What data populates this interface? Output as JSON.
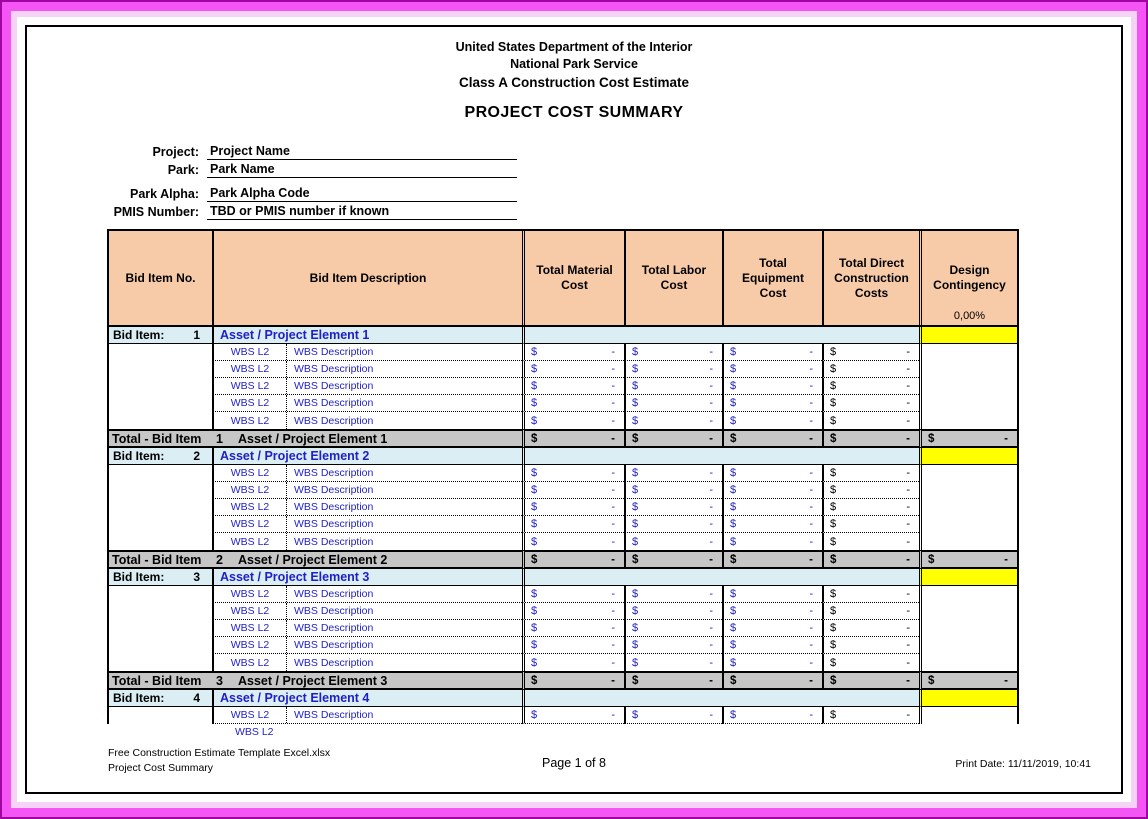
{
  "header": {
    "line1": "United States Department of the Interior",
    "line2": "National Park Service",
    "line3": "Class A Construction Cost Estimate",
    "title": "PROJECT COST SUMMARY"
  },
  "fields": [
    {
      "label": "Project:",
      "value": "Project Name"
    },
    {
      "label": "Park:",
      "value": "Park Name"
    },
    {
      "label": "Park Alpha:",
      "value": "Park Alpha Code"
    },
    {
      "label": "PMIS Number:",
      "value": "TBD or PMIS number if known"
    }
  ],
  "table": {
    "headers": {
      "bid_item_no": "Bid Item No.",
      "bid_item_description": "Bid Item Description",
      "total_material_cost": "Total Material Cost",
      "total_labor_cost": "Total Labor Cost",
      "total_equipment_cost": "Total Equipment Cost",
      "total_direct_construction_costs": "Total Direct Construction Costs",
      "design_contingency": "Design Contingency",
      "design_contingency_pct": "0,00%"
    },
    "row_labels": {
      "bid_item_prefix": "Bid Item:",
      "total_prefix": "Total - Bid Item",
      "wbs_code": "WBS L2",
      "wbs_description": "WBS Description",
      "currency": "$",
      "empty_amount": "-"
    },
    "sections": [
      {
        "number": "1",
        "description": "Asset / Project Element 1",
        "wbs_rows": 5,
        "has_total": true
      },
      {
        "number": "2",
        "description": "Asset / Project Element 2",
        "wbs_rows": 5,
        "has_total": true
      },
      {
        "number": "3",
        "description": "Asset / Project Element 3",
        "wbs_rows": 5,
        "has_total": true
      },
      {
        "number": "4",
        "description": "Asset / Project Element 4",
        "wbs_rows": 1,
        "has_total": false,
        "partial_wbs_code": "WBS L2"
      }
    ]
  },
  "footer": {
    "file_name": "Free Construction Estimate Template Excel.xlsx",
    "sheet_name": "Project Cost Summary",
    "page_indicator": "Page 1 of 8",
    "print_date": "Print Date: 11/11/2019, 10:41"
  },
  "colors": {
    "frame_outer": "#A105A1",
    "frame_band": "#F455F4",
    "frame_band_light": "#F6D3F6",
    "header_fill": "#F8CBA8",
    "bid_item_fill": "#DAEEF3",
    "contingency_fill": "#FFFF00",
    "total_fill": "#C6C6C6",
    "accent_text": "#1F1FC8"
  }
}
